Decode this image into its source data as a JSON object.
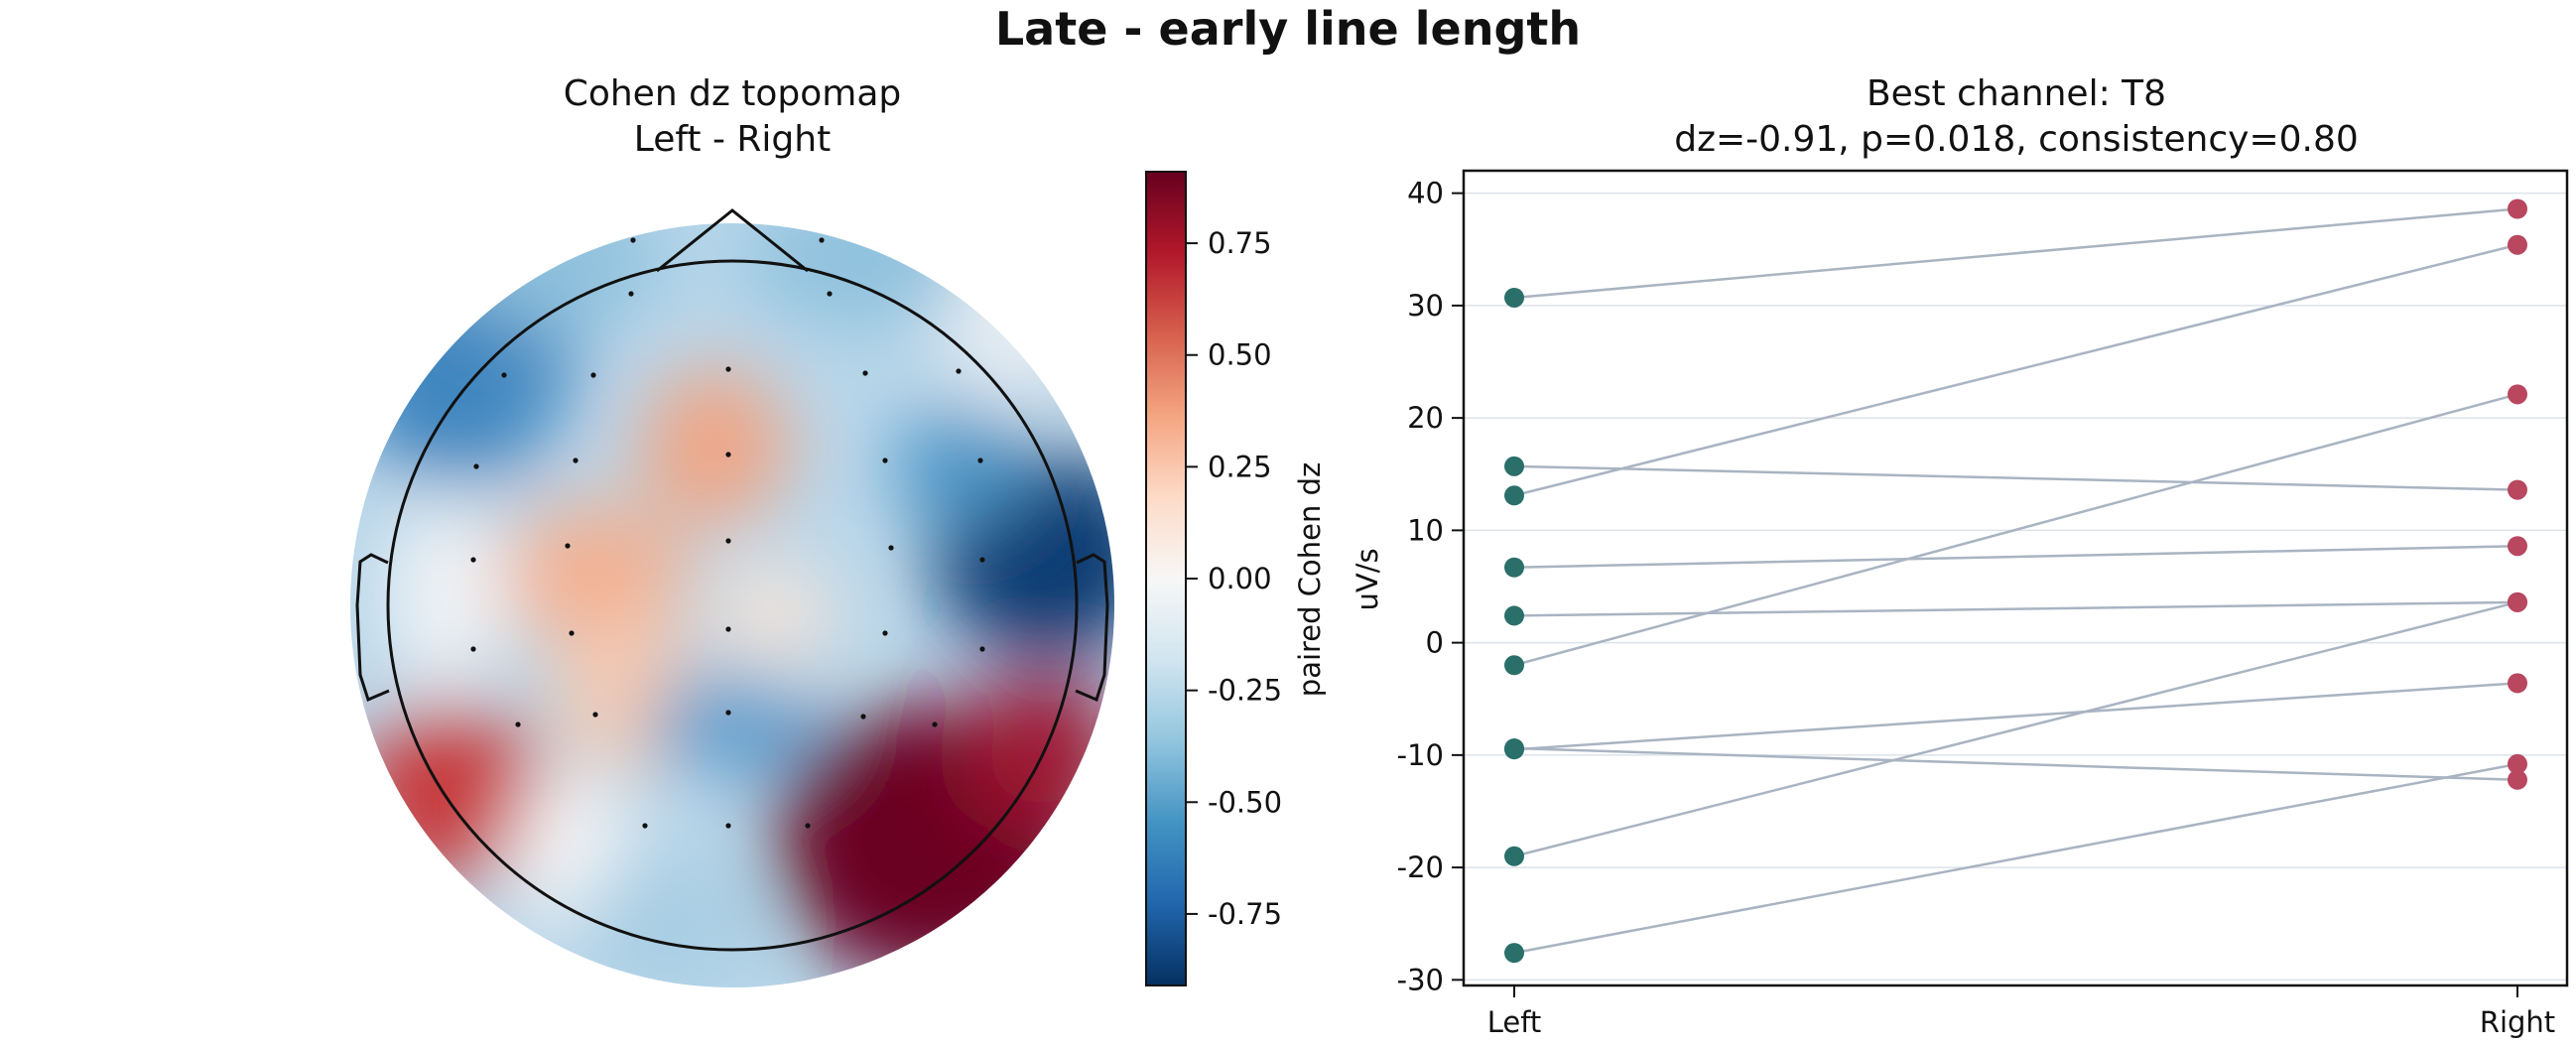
{
  "figure": {
    "title": "Late - early line length"
  },
  "chart_data": [
    {
      "type": "heatmap",
      "title": "Cohen dz topomap",
      "subtitle": "Left - Right",
      "colorbar": {
        "label": "paired Cohen dz",
        "range": [
          -0.91,
          0.91
        ],
        "ticks": [
          "0.75",
          "0.50",
          "0.25",
          "0.00",
          "-0.25",
          "-0.50",
          "-0.75"
        ],
        "tick_values": [
          0.75,
          0.5,
          0.25,
          0.0,
          -0.25,
          -0.5,
          -0.75
        ],
        "colormap": "RdBu_r"
      },
      "sensors_shown": 36
    },
    {
      "type": "line",
      "title": "Best channel: T8",
      "subtitle": "dz=-0.91, p=0.018, consistency=0.80",
      "ylabel": "uV/s",
      "xlabel": "",
      "categories": [
        "Left",
        "Right"
      ],
      "ylim": [
        -30.5,
        42
      ],
      "yticks": [
        40,
        30,
        20,
        10,
        0,
        -10,
        -20,
        -30
      ],
      "ytick_labels": [
        "40",
        "30",
        "20",
        "10",
        "0",
        "-10",
        "-20",
        "-30"
      ],
      "grid": true,
      "colors": {
        "left": "#2a6f6a",
        "right": "#b8475f",
        "line": "#a9b4c2"
      },
      "subjects": [
        {
          "left": 30.7,
          "right": 38.6
        },
        {
          "left": 15.7,
          "right": 13.6
        },
        {
          "left": 13.1,
          "right": 35.4
        },
        {
          "left": 6.7,
          "right": 8.6
        },
        {
          "left": 2.4,
          "right": 3.6
        },
        {
          "left": -2.0,
          "right": 22.1
        },
        {
          "left": -9.4,
          "right": -12.2
        },
        {
          "left": -9.5,
          "right": -3.6
        },
        {
          "left": -19.0,
          "right": 3.6
        },
        {
          "left": -27.6,
          "right": -10.8
        }
      ]
    }
  ]
}
